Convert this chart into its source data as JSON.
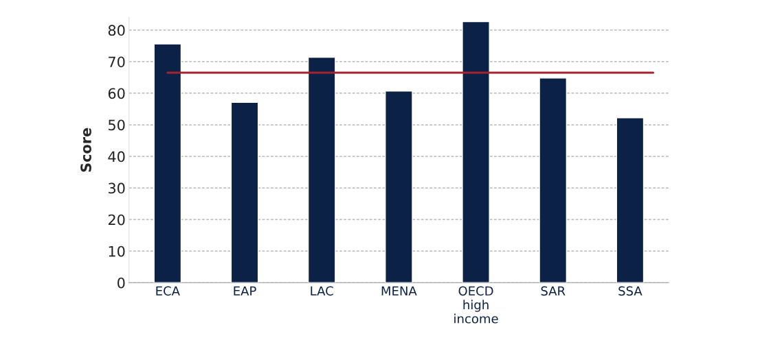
{
  "chart_data": {
    "type": "bar",
    "ylabel": "Score",
    "categories": [
      "ECA",
      "EAP",
      "LAC",
      "MENA",
      "OECD\nhigh\nincome",
      "SAR",
      "SSA"
    ],
    "values": [
      75.6,
      57.1,
      71.4,
      60.7,
      82.7,
      64.8,
      52.2
    ],
    "color": "#0c2146",
    "ylim": [
      0,
      84
    ],
    "yticks": [
      0,
      10,
      20,
      30,
      40,
      50,
      60,
      70,
      80
    ],
    "grid": "y",
    "ref_lines": [
      {
        "axis": "y",
        "value": 66.5,
        "color": "#a3242f",
        "line_style": "solid"
      }
    ]
  }
}
